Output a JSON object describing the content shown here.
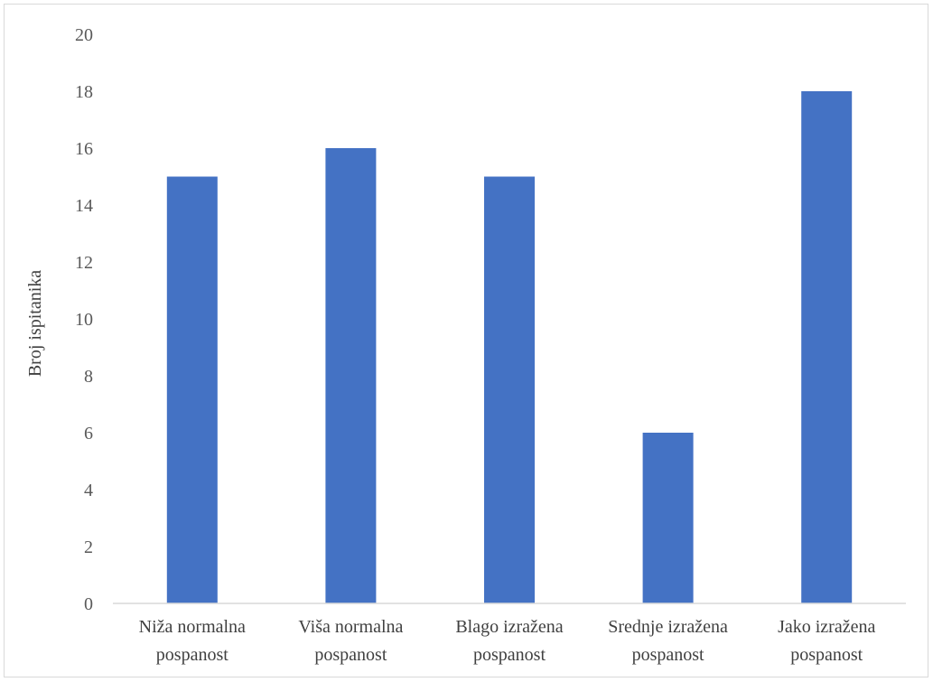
{
  "chart_data": {
    "type": "bar",
    "title": "",
    "xlabel": "",
    "ylabel": "Broj ispitanika",
    "ylim": [
      0,
      20
    ],
    "yticks": [
      0,
      2,
      4,
      6,
      8,
      10,
      12,
      14,
      16,
      18,
      20
    ],
    "grid": false,
    "legend": "none",
    "categories": [
      [
        "Niža normalna",
        "pospanost"
      ],
      [
        "Viša normalna",
        "pospanost"
      ],
      [
        "Blago izražena",
        "pospanost"
      ],
      [
        "Srednje izražena",
        "pospanost"
      ],
      [
        "Jako izražena",
        "pospanost"
      ]
    ],
    "values": [
      15,
      16,
      15,
      6,
      18
    ],
    "bar_color": "#4472c4",
    "axis_color": "#d9d9d9"
  }
}
